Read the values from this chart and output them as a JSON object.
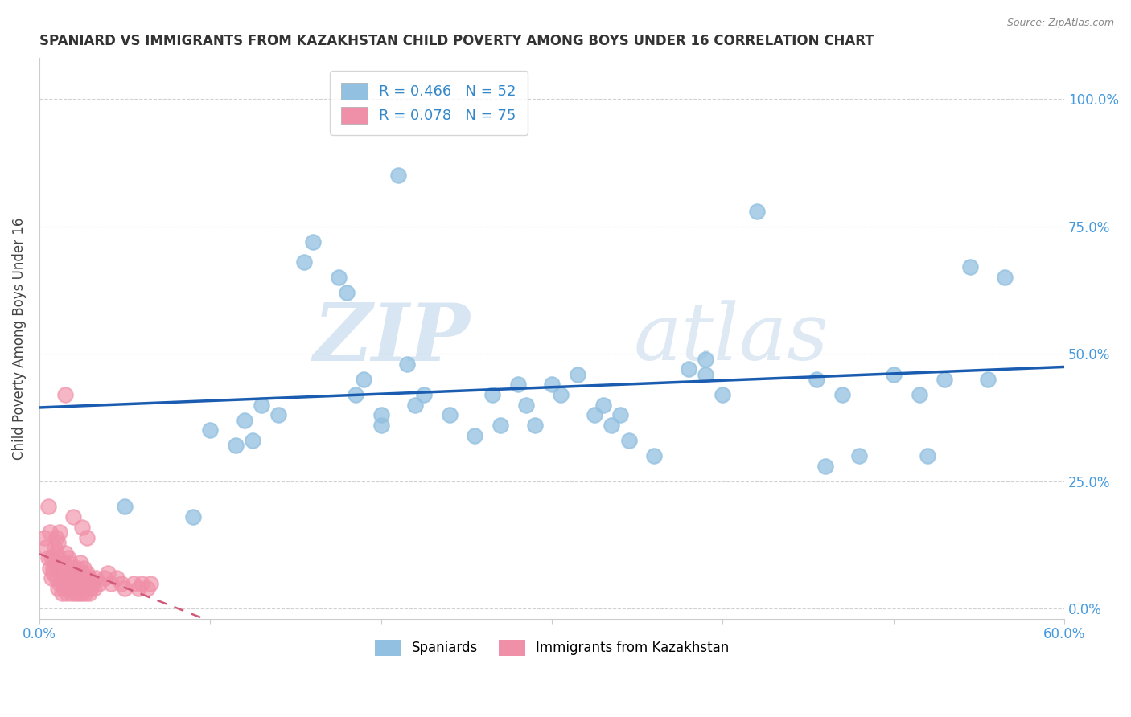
{
  "title": "SPANIARD VS IMMIGRANTS FROM KAZAKHSTAN CHILD POVERTY AMONG BOYS UNDER 16 CORRELATION CHART",
  "source": "Source: ZipAtlas.com",
  "ylabel": "Child Poverty Among Boys Under 16",
  "watermark_zip": "ZIP",
  "watermark_atlas": "atlas",
  "xlim": [
    0.0,
    0.6
  ],
  "ylim": [
    -0.02,
    1.08
  ],
  "xticks": [
    0.0,
    0.1,
    0.2,
    0.3,
    0.4,
    0.5,
    0.6
  ],
  "xtick_labels": [
    "0.0%",
    "",
    "",
    "",
    "",
    "",
    "60.0%"
  ],
  "yticks": [
    0.0,
    0.25,
    0.5,
    0.75,
    1.0
  ],
  "ytick_labels": [
    "0.0%",
    "25.0%",
    "50.0%",
    "75.0%",
    "100.0%"
  ],
  "blue_color": "#92C0E0",
  "pink_color": "#F090A8",
  "blue_line_color": "#1A5CB0",
  "pink_line_color": "#D05878",
  "label1": "Spaniards",
  "label2": "Immigrants from Kazakhstan",
  "blue_x": [
    0.05,
    0.09,
    0.1,
    0.115,
    0.12,
    0.125,
    0.13,
    0.14,
    0.155,
    0.16,
    0.175,
    0.18,
    0.185,
    0.19,
    0.2,
    0.2,
    0.21,
    0.215,
    0.22,
    0.225,
    0.24,
    0.255,
    0.265,
    0.27,
    0.28,
    0.285,
    0.29,
    0.3,
    0.305,
    0.315,
    0.325,
    0.33,
    0.335,
    0.34,
    0.345,
    0.36,
    0.38,
    0.39,
    0.39,
    0.4,
    0.42,
    0.455,
    0.46,
    0.47,
    0.48,
    0.5,
    0.515,
    0.52,
    0.53,
    0.545,
    0.555,
    0.565
  ],
  "blue_y": [
    0.2,
    0.18,
    0.35,
    0.32,
    0.37,
    0.33,
    0.4,
    0.38,
    0.68,
    0.72,
    0.65,
    0.62,
    0.42,
    0.45,
    0.36,
    0.38,
    0.85,
    0.48,
    0.4,
    0.42,
    0.38,
    0.34,
    0.42,
    0.36,
    0.44,
    0.4,
    0.36,
    0.44,
    0.42,
    0.46,
    0.38,
    0.4,
    0.36,
    0.38,
    0.33,
    0.3,
    0.47,
    0.49,
    0.46,
    0.42,
    0.78,
    0.45,
    0.28,
    0.42,
    0.3,
    0.46,
    0.42,
    0.3,
    0.45,
    0.67,
    0.45,
    0.65
  ],
  "pink_x": [
    0.005,
    0.006,
    0.007,
    0.008,
    0.009,
    0.01,
    0.01,
    0.011,
    0.011,
    0.012,
    0.012,
    0.013,
    0.013,
    0.014,
    0.014,
    0.015,
    0.015,
    0.016,
    0.016,
    0.017,
    0.017,
    0.018,
    0.018,
    0.019,
    0.019,
    0.02,
    0.02,
    0.021,
    0.021,
    0.022,
    0.022,
    0.023,
    0.023,
    0.024,
    0.024,
    0.025,
    0.025,
    0.026,
    0.026,
    0.027,
    0.027,
    0.028,
    0.028,
    0.029,
    0.029,
    0.03,
    0.031,
    0.032,
    0.033,
    0.035,
    0.038,
    0.04,
    0.042,
    0.045,
    0.048,
    0.05,
    0.055,
    0.058,
    0.06,
    0.063,
    0.065,
    0.003,
    0.004,
    0.005,
    0.006,
    0.007,
    0.008,
    0.009,
    0.01,
    0.011,
    0.012,
    0.015,
    0.02,
    0.025,
    0.028
  ],
  "pink_y": [
    0.2,
    0.15,
    0.1,
    0.08,
    0.12,
    0.06,
    0.14,
    0.04,
    0.1,
    0.05,
    0.08,
    0.03,
    0.07,
    0.04,
    0.09,
    0.05,
    0.11,
    0.03,
    0.08,
    0.04,
    0.1,
    0.05,
    0.09,
    0.03,
    0.07,
    0.04,
    0.08,
    0.03,
    0.06,
    0.04,
    0.08,
    0.03,
    0.06,
    0.04,
    0.09,
    0.03,
    0.07,
    0.04,
    0.08,
    0.03,
    0.06,
    0.04,
    0.07,
    0.03,
    0.06,
    0.04,
    0.05,
    0.04,
    0.06,
    0.05,
    0.06,
    0.07,
    0.05,
    0.06,
    0.05,
    0.04,
    0.05,
    0.04,
    0.05,
    0.04,
    0.05,
    0.14,
    0.12,
    0.1,
    0.08,
    0.06,
    0.07,
    0.09,
    0.11,
    0.13,
    0.15,
    0.42,
    0.18,
    0.16,
    0.14
  ]
}
